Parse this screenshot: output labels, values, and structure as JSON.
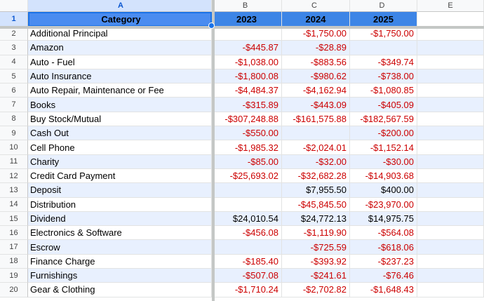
{
  "columns": [
    "A",
    "B",
    "C",
    "D",
    "E"
  ],
  "header": {
    "row_num": "1",
    "category": "Category",
    "y2023": "2023",
    "y2024": "2024",
    "y2025": "2025"
  },
  "rows": [
    {
      "num": "2",
      "category": "Additional Principal",
      "y2023": "",
      "y2024": "-$1,750.00",
      "y2025": "-$1,750.00"
    },
    {
      "num": "3",
      "category": "Amazon",
      "y2023": "-$445.87",
      "y2024": "-$28.89",
      "y2025": ""
    },
    {
      "num": "4",
      "category": "Auto - Fuel",
      "y2023": "-$1,038.00",
      "y2024": "-$883.56",
      "y2025": "-$349.74"
    },
    {
      "num": "5",
      "category": "Auto Insurance",
      "y2023": "-$1,800.08",
      "y2024": "-$980.62",
      "y2025": "-$738.00"
    },
    {
      "num": "6",
      "category": "Auto Repair, Maintenance or Fee",
      "y2023": "-$4,484.37",
      "y2024": "-$4,162.94",
      "y2025": "-$1,080.85"
    },
    {
      "num": "7",
      "category": "Books",
      "y2023": "-$315.89",
      "y2024": "-$443.09",
      "y2025": "-$405.09"
    },
    {
      "num": "8",
      "category": "Buy Stock/Mutual",
      "y2023": "-$307,248.88",
      "y2024": "-$161,575.88",
      "y2025": "-$182,567.59"
    },
    {
      "num": "9",
      "category": "Cash Out",
      "y2023": "-$550.00",
      "y2024": "",
      "y2025": "-$200.00"
    },
    {
      "num": "10",
      "category": "Cell Phone",
      "y2023": "-$1,985.32",
      "y2024": "-$2,024.01",
      "y2025": "-$1,152.14"
    },
    {
      "num": "11",
      "category": "Charity",
      "y2023": "-$85.00",
      "y2024": "-$32.00",
      "y2025": "-$30.00"
    },
    {
      "num": "12",
      "category": "Credit Card Payment",
      "y2023": "-$25,693.02",
      "y2024": "-$32,682.28",
      "y2025": "-$14,903.68"
    },
    {
      "num": "13",
      "category": "Deposit",
      "y2023": "",
      "y2024": "$7,955.50",
      "y2025": "$400.00"
    },
    {
      "num": "14",
      "category": "Distribution",
      "y2023": "",
      "y2024": "-$45,845.50",
      "y2025": "-$23,970.00"
    },
    {
      "num": "15",
      "category": "Dividend",
      "y2023": "$24,010.54",
      "y2024": "$24,772.13",
      "y2025": "$14,975.75"
    },
    {
      "num": "16",
      "category": "Electronics & Software",
      "y2023": "-$456.08",
      "y2024": "-$1,119.90",
      "y2025": "-$564.08"
    },
    {
      "num": "17",
      "category": "Escrow",
      "y2023": "",
      "y2024": "-$725.59",
      "y2025": "-$618.06"
    },
    {
      "num": "18",
      "category": "Finance Charge",
      "y2023": "-$185.40",
      "y2024": "-$393.92",
      "y2025": "-$237.23"
    },
    {
      "num": "19",
      "category": "Furnishings",
      "y2023": "-$507.08",
      "y2024": "-$241.61",
      "y2025": "-$76.46"
    },
    {
      "num": "20",
      "category": "Gear & Clothing",
      "y2023": "-$1,710.24",
      "y2024": "-$2,702.82",
      "y2025": "-$1,648.43"
    }
  ],
  "colors": {
    "header_fill": "#3d85e6",
    "stripe": "#e8f0fe",
    "negative": "#cc0000",
    "selection": "#1a73e8"
  }
}
